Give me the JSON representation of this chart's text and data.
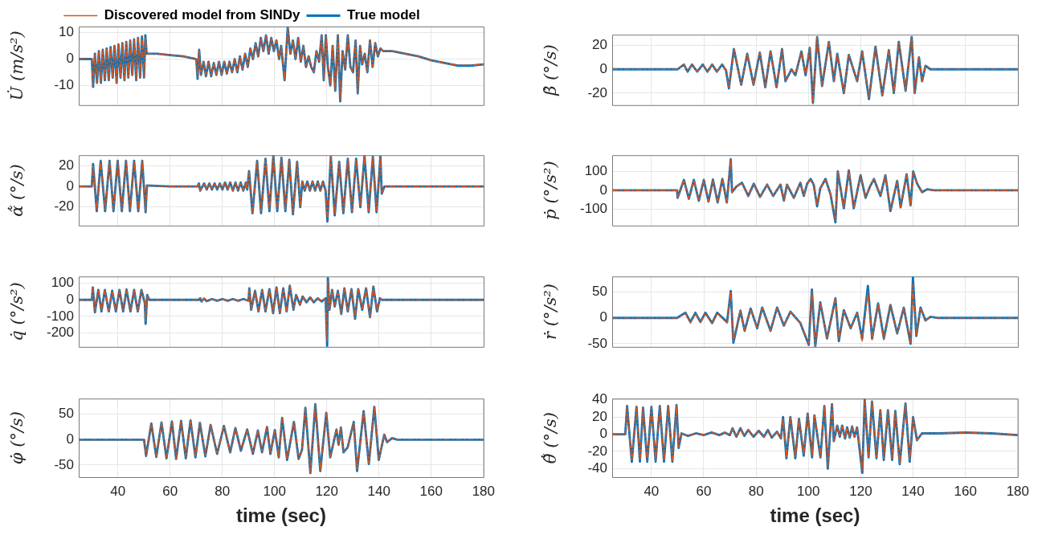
{
  "chart_data": [
    {
      "type": "line",
      "ylabel": "U̇ (m/s²)",
      "legend": "top",
      "grid": true,
      "marker": "none",
      "tick_labels": "y",
      "xlim": [
        25,
        180
      ],
      "xticks": [
        40,
        60,
        80,
        100,
        120,
        140,
        160,
        180
      ],
      "ylim": [
        -17.4,
        12.3
      ],
      "yticks": [
        -10,
        0,
        10
      ],
      "x": [
        25,
        30,
        30.5,
        31.2,
        32,
        32.7,
        33.5,
        34.2,
        35,
        35.7,
        36.5,
        37.2,
        38,
        38.7,
        39.5,
        40.2,
        41,
        41.7,
        42.5,
        43.2,
        44,
        44.7,
        45.5,
        46.2,
        47,
        47.7,
        48.5,
        49.2,
        50,
        50.5,
        51,
        55,
        60,
        65,
        70,
        70.5,
        71.1,
        71.8,
        72.8,
        73.7,
        74.7,
        75.7,
        76.7,
        77.7,
        78.7,
        79.7,
        80.7,
        81.7,
        82.7,
        83.7,
        84.7,
        85.7,
        86.7,
        87.7,
        88.7,
        89.7,
        90.7,
        91.7,
        92.7,
        93.7,
        94.7,
        95.7,
        96.7,
        97.7,
        98.7,
        99.7,
        100.7,
        101.7,
        102.5,
        103.8,
        105,
        106,
        107,
        108,
        109,
        110,
        111,
        112,
        113,
        114,
        115,
        116,
        117,
        118,
        118.8,
        119.6,
        120.4,
        121.3,
        122.2,
        123.2,
        124.2,
        125.1,
        126,
        127,
        128,
        129,
        130,
        131,
        131.8,
        132.7,
        133.5,
        134.5,
        135.5,
        136.5,
        137.5,
        138.5,
        139.5,
        140.5,
        141.5,
        145,
        150,
        155,
        160,
        165,
        170,
        175,
        180
      ],
      "series": [
        {
          "name": "True model",
          "color": "#0072bd",
          "line_style": "solid",
          "values": [
            0,
            0,
            -10.5,
            2,
            -9,
            3,
            -9,
            3.5,
            -8,
            4,
            -8,
            4.5,
            -7,
            5,
            -9,
            5.5,
            -7,
            6,
            -8,
            6.5,
            -7,
            7,
            -6,
            7.5,
            -8,
            8,
            -7,
            8.5,
            -7,
            9,
            2,
            2,
            1.5,
            1,
            0,
            -7.5,
            3.5,
            -6,
            -1,
            -6.5,
            -1,
            -6.5,
            -1.5,
            -6,
            -1,
            -6,
            -1,
            -5.5,
            -1,
            -5,
            0,
            -5,
            1,
            -4,
            2,
            -3,
            4,
            0,
            6,
            1,
            8,
            3,
            9,
            2,
            8,
            3,
            7,
            0,
            5,
            -8,
            12,
            2,
            7,
            0,
            8,
            -1,
            5,
            -3,
            1,
            -3,
            -5,
            3,
            -1,
            9,
            -8,
            9,
            -3,
            -10,
            5,
            -12,
            9,
            -16,
            3,
            -4,
            9,
            -3,
            -5,
            7,
            -13,
            5,
            -2,
            2,
            -5,
            7,
            -3,
            6,
            1,
            4,
            3,
            3,
            2,
            1,
            -0.5,
            -1.5,
            -2.5,
            -2.5,
            -2
          ]
        },
        {
          "name": "Discovered model from SINDy",
          "color": "#d95319",
          "line_style": "dashed",
          "values": [
            0,
            0,
            -10,
            2,
            -9,
            3,
            -9,
            3.5,
            -8,
            4,
            -8,
            4.5,
            -7,
            5,
            -9,
            5.5,
            -7,
            6,
            -8,
            6.5,
            -7,
            7,
            -6,
            7.5,
            -8,
            8,
            -7,
            8.5,
            -7,
            8.5,
            2,
            2,
            1.5,
            1,
            0,
            -7,
            3.5,
            -6,
            -1,
            -6.5,
            -1,
            -6.5,
            -1.5,
            -6,
            -1,
            -6,
            -1,
            -5.5,
            -1,
            -5,
            0,
            -5,
            1,
            -4,
            2,
            -3,
            4,
            0,
            6,
            1,
            8,
            3,
            9,
            2,
            8,
            3,
            7,
            0,
            5,
            -8,
            12,
            2,
            7,
            0,
            8,
            -1,
            5,
            -3,
            1,
            -3,
            -5,
            3,
            -1,
            9,
            -8,
            9,
            -3,
            -10,
            5,
            -12,
            9,
            -15.5,
            3,
            -4,
            9,
            -3,
            -5,
            7,
            -13,
            5,
            -2,
            2,
            -5,
            7,
            -3,
            6,
            1,
            4,
            3,
            3,
            2,
            1,
            -0.5,
            -1.5,
            -2.3,
            -2.4,
            -2
          ]
        }
      ]
    },
    {
      "type": "line",
      "ylabel": "β̇ (°/s)",
      "grid": true,
      "marker": "none",
      "tick_labels": "y",
      "xlim": [
        25,
        180
      ],
      "xticks": [
        40,
        60,
        80,
        100,
        120,
        140,
        160,
        180
      ],
      "ylim": [
        -30,
        29
      ],
      "yticks": [
        -20,
        0,
        20
      ],
      "x": [
        25,
        50,
        52.4,
        53.8,
        55.5,
        57.5,
        59.6,
        61.4,
        63.2,
        65,
        67,
        68.5,
        69.6,
        71.5,
        74.3,
        76.6,
        79,
        81.4,
        83.5,
        85.5,
        87.8,
        89.9,
        91.2,
        93.5,
        95,
        97.3,
        98.9,
        100.5,
        101.7,
        103.3,
        105.2,
        107.8,
        109.7,
        111,
        113.5,
        115.4,
        118.6,
        120.5,
        123.1,
        125.6,
        128.2,
        130.7,
        132.6,
        134.5,
        137.1,
        139.4,
        140.6,
        142.2,
        143.4,
        144.7,
        146.6,
        180
      ],
      "series": [
        {
          "color": "#0072bd",
          "line_style": "solid",
          "values": [
            0,
            0,
            4,
            -2,
            4,
            -2,
            4,
            -2,
            4,
            -2,
            4,
            -1,
            -16,
            17,
            -13,
            13,
            -13,
            14,
            -15,
            15,
            -15,
            17,
            -10,
            0,
            -5,
            15,
            -5,
            18,
            -28,
            27,
            -14,
            23,
            -10,
            13,
            -20,
            12,
            -10,
            15,
            -25,
            19,
            -22,
            16,
            -20,
            23,
            -18,
            27,
            -20,
            10,
            -10,
            3,
            0,
            0
          ]
        },
        {
          "color": "#d95319",
          "line_style": "dashed",
          "values": [
            0,
            0,
            4,
            -2,
            4,
            -2,
            4,
            -2,
            4,
            -2,
            4,
            -1,
            -16,
            17,
            -13,
            13,
            -13,
            14,
            -15,
            15,
            -15,
            17,
            -10,
            0,
            -5,
            15,
            -5,
            18,
            -29,
            27,
            -14,
            23,
            -10,
            13,
            -20,
            12,
            -10,
            15,
            -24,
            19,
            -22,
            16,
            -20,
            23,
            -18,
            27,
            -20,
            10,
            -10,
            3,
            0,
            0
          ]
        }
      ]
    },
    {
      "type": "line",
      "ylabel": "α̃̇ (°/s)",
      "grid": true,
      "marker": "none",
      "tick_labels": "y",
      "xlim": [
        25,
        180
      ],
      "xticks": [
        40,
        60,
        80,
        100,
        120,
        140,
        160,
        180
      ],
      "ylim": [
        -38,
        30.5
      ],
      "yticks": [
        -20,
        0,
        20
      ],
      "x": [
        25,
        30,
        30.5,
        31.9,
        33.4,
        35.1,
        36.8,
        38.3,
        39.9,
        41.5,
        43.1,
        44.6,
        46.2,
        47.8,
        49.3,
        50.6,
        51.1,
        60,
        70.5,
        71,
        71.5,
        73,
        74,
        75,
        76,
        77,
        78,
        79,
        80,
        81,
        82,
        83,
        84,
        85,
        86,
        87,
        88,
        89,
        89.5,
        90.2,
        91.5,
        93.3,
        94.8,
        96.5,
        98,
        99.5,
        101,
        102.6,
        104.1,
        105.6,
        107,
        108.6,
        109.8,
        110.6,
        111.5,
        112.5,
        113.5,
        114.5,
        115.5,
        116.5,
        117.5,
        118.5,
        119.5,
        120.2,
        121.5,
        123,
        124.7,
        126.3,
        128,
        129.6,
        131.2,
        132.8,
        134.4,
        136,
        137.6,
        139,
        140.5,
        141,
        142,
        180
      ],
      "series": [
        {
          "color": "#0072bd",
          "line_style": "solid",
          "values": [
            0,
            0,
            22,
            -24,
            25,
            -24,
            25,
            -24,
            25,
            -24,
            25,
            -24,
            25,
            -24,
            25,
            -25,
            1,
            0,
            0,
            3,
            -4,
            3,
            -3,
            3,
            -3,
            3,
            -3,
            3,
            -3,
            4,
            -3,
            4,
            -4,
            4,
            -4,
            4,
            -4,
            4,
            -3,
            15,
            -26,
            25,
            -26,
            27,
            -24,
            30,
            -24,
            28,
            -24,
            26,
            -27,
            24,
            -20,
            5,
            -4,
            5,
            -4,
            5,
            -4,
            5,
            -4,
            5,
            -4,
            -34,
            29,
            -28,
            24,
            -26,
            27,
            -25,
            27,
            -20,
            30,
            -25,
            29,
            -25,
            29,
            -7,
            0,
            0
          ]
        },
        {
          "color": "#d95319",
          "line_style": "dashed",
          "values": [
            0,
            0,
            21,
            -23,
            25,
            -23,
            25,
            -23,
            25,
            -23,
            25,
            -23,
            25,
            -23,
            25,
            -24,
            1,
            0,
            0,
            3,
            -4,
            3,
            -3,
            3,
            -3,
            3,
            -3,
            3,
            -3,
            4,
            -3,
            4,
            -4,
            4,
            -4,
            4,
            -4,
            4,
            -3,
            14,
            -25,
            25,
            -25,
            27,
            -23,
            30,
            -23,
            28,
            -23,
            26,
            -26,
            24,
            -19,
            5,
            -4,
            5,
            -4,
            5,
            -4,
            5,
            -4,
            5,
            -4,
            -33,
            29,
            -27,
            24,
            -25,
            27,
            -24,
            27,
            -19,
            30,
            -24,
            29,
            -24,
            29,
            -7,
            0,
            0
          ]
        }
      ]
    },
    {
      "type": "line",
      "ylabel": "ṗ (°/s²)",
      "grid": true,
      "marker": "none",
      "tick_labels": "y",
      "xlim": [
        25,
        180
      ],
      "xticks": [
        40,
        60,
        80,
        100,
        120,
        140,
        160,
        180
      ],
      "ylim": [
        -187,
        186
      ],
      "yticks": [
        -100,
        0,
        100
      ],
      "x": [
        25,
        49.8,
        50,
        52.4,
        54.3,
        56.2,
        58.1,
        60,
        61.8,
        63.5,
        65.3,
        67.1,
        68.8,
        70.3,
        70.8,
        72.5,
        74.6,
        77,
        79.1,
        81.5,
        84.2,
        86.5,
        89.3,
        90.6,
        91.8,
        94.4,
        96.9,
        98.2,
        99.5,
        100.8,
        102,
        103.3,
        104.5,
        106.5,
        108.4,
        110.3,
        111.2,
        113.5,
        115.4,
        117.3,
        119.9,
        121.8,
        123.5,
        125,
        127.5,
        129.4,
        131.3,
        133.9,
        135.2,
        137.5,
        139,
        140,
        141.5,
        143.4,
        145.3,
        147.9,
        180
      ],
      "series": [
        {
          "color": "#0072bd",
          "line_style": "solid",
          "values": [
            0,
            0,
            -40,
            55,
            -45,
            55,
            -55,
            55,
            -60,
            57,
            -65,
            60,
            -65,
            165,
            -10,
            20,
            40,
            -30,
            35,
            -35,
            30,
            -30,
            30,
            -55,
            30,
            -40,
            40,
            -30,
            35,
            60,
            30,
            -85,
            10,
            60,
            -20,
            -170,
            100,
            -95,
            105,
            -95,
            80,
            -40,
            20,
            60,
            -30,
            80,
            -110,
            50,
            -90,
            85,
            -80,
            100,
            35,
            -10,
            5,
            0,
            0
          ]
        },
        {
          "color": "#d95319",
          "line_style": "dashed",
          "values": [
            0,
            0,
            -40,
            55,
            -45,
            55,
            -55,
            55,
            -60,
            57,
            -65,
            60,
            -65,
            165,
            -10,
            20,
            40,
            -30,
            35,
            -35,
            30,
            -30,
            30,
            -55,
            30,
            -40,
            40,
            -30,
            35,
            55,
            30,
            -80,
            10,
            60,
            -20,
            -160,
            100,
            -95,
            105,
            -95,
            80,
            -40,
            20,
            60,
            -30,
            80,
            -105,
            50,
            -90,
            85,
            -80,
            100,
            35,
            -10,
            5,
            0,
            0
          ]
        }
      ]
    },
    {
      "type": "line",
      "ylabel": "q̇ (°/s²)",
      "grid": true,
      "marker": "none",
      "tick_labels": "y",
      "xlim": [
        25,
        180
      ],
      "xticks": [
        40,
        60,
        80,
        100,
        120,
        140,
        160,
        180
      ],
      "ylim": [
        -284,
        141
      ],
      "yticks": [
        -200,
        -100,
        0,
        100
      ],
      "x": [
        25,
        30,
        30.4,
        31.2,
        32.5,
        33.7,
        35,
        36.5,
        37.8,
        39.2,
        40.6,
        42,
        43.3,
        44.8,
        46.2,
        47.6,
        49,
        50.3,
        50.6,
        51.2,
        52,
        71,
        71.5,
        72,
        73,
        74,
        76,
        78,
        80,
        82,
        84,
        86,
        88,
        90,
        90.3,
        91,
        92.5,
        93.8,
        95.2,
        96.5,
        98,
        99.4,
        100.7,
        102,
        103.3,
        104.6,
        105.8,
        107.2,
        108.2,
        109.7,
        110.7,
        112.2,
        113.6,
        115,
        116.5,
        118,
        119.5,
        120.1,
        120.4,
        121,
        122,
        123,
        124.2,
        125.5,
        126.7,
        128,
        129.4,
        130.8,
        132,
        133.5,
        135,
        136.5,
        137.8,
        139.2,
        140.3,
        141,
        180
      ],
      "series": [
        {
          "color": "#0072bd",
          "line_style": "solid",
          "values": [
            0,
            0,
            75,
            -75,
            60,
            -70,
            60,
            -70,
            55,
            -70,
            60,
            -70,
            62,
            -70,
            60,
            -70,
            60,
            -20,
            -145,
            30,
            0,
            0,
            10,
            -10,
            8,
            -8,
            5,
            -5,
            5,
            -5,
            5,
            -5,
            5,
            -5,
            70,
            -60,
            55,
            -70,
            60,
            -70,
            65,
            -80,
            75,
            -80,
            70,
            -70,
            85,
            -60,
            30,
            -30,
            20,
            -15,
            15,
            -15,
            10,
            -10,
            10,
            -280,
            130,
            -60,
            60,
            -40,
            55,
            -85,
            70,
            -70,
            65,
            -115,
            65,
            -60,
            70,
            -105,
            80,
            -70,
            10,
            0,
            0
          ]
        },
        {
          "color": "#d95319",
          "line_style": "dashed",
          "values": [
            0,
            0,
            72,
            -70,
            60,
            -68,
            60,
            -68,
            55,
            -68,
            60,
            -68,
            62,
            -68,
            60,
            -68,
            60,
            -20,
            -130,
            30,
            0,
            0,
            10,
            -10,
            8,
            -8,
            5,
            -5,
            5,
            -5,
            5,
            -5,
            5,
            -5,
            68,
            -58,
            55,
            -68,
            60,
            -68,
            65,
            -78,
            75,
            -78,
            70,
            -68,
            85,
            -58,
            30,
            -30,
            20,
            -15,
            15,
            -15,
            10,
            -10,
            10,
            -250,
            120,
            -60,
            60,
            -40,
            55,
            -85,
            70,
            -70,
            65,
            -110,
            65,
            -60,
            70,
            -105,
            80,
            -70,
            10,
            0,
            0
          ]
        }
      ]
    },
    {
      "type": "line",
      "ylabel": "ṙ (°/s²)",
      "grid": true,
      "marker": "none",
      "tick_labels": "y",
      "xlim": [
        25,
        180
      ],
      "xticks": [
        40,
        60,
        80,
        100,
        120,
        140,
        160,
        180
      ],
      "ylim": [
        -56,
        80
      ],
      "yticks": [
        -50,
        0,
        50
      ],
      "x": [
        25,
        49.8,
        53,
        54.9,
        56.8,
        58.7,
        60.6,
        63.2,
        65.1,
        68.9,
        70.3,
        71.3,
        74,
        75.6,
        77.9,
        80.4,
        82.3,
        85.5,
        88,
        90.6,
        93.1,
        96.9,
        100.1,
        101.3,
        102.6,
        104.5,
        107.1,
        110.3,
        111.6,
        113.5,
        116.1,
        118.6,
        120.5,
        122.7,
        124.3,
        126.6,
        128.8,
        131.3,
        133.9,
        136.4,
        139,
        139.9,
        141.2,
        142.8,
        144.7,
        146.6,
        149.2,
        180
      ],
      "series": [
        {
          "color": "#0072bd",
          "line_style": "solid",
          "values": [
            0,
            0,
            10,
            -8,
            10,
            -8,
            10,
            -10,
            10,
            -8,
            52,
            -48,
            14,
            -25,
            18,
            -20,
            20,
            -25,
            20,
            -15,
            12,
            -10,
            -52,
            55,
            -55,
            30,
            -40,
            38,
            -45,
            15,
            -20,
            10,
            -40,
            62,
            -40,
            28,
            -40,
            25,
            -30,
            20,
            -50,
            78,
            -35,
            20,
            -5,
            2,
            0,
            0
          ]
        },
        {
          "color": "#d95319",
          "line_style": "dashed",
          "values": [
            0,
            0,
            9,
            -10,
            9,
            -10,
            9,
            -12,
            9,
            -10,
            50,
            -45,
            14,
            -25,
            17,
            -20,
            19,
            -25,
            19,
            -15,
            12,
            -10,
            -50,
            52,
            -55,
            30,
            -40,
            38,
            -42,
            14,
            -20,
            10,
            -45,
            50,
            -42,
            28,
            -42,
            25,
            -30,
            20,
            -48,
            65,
            -35,
            20,
            -5,
            2,
            0,
            0
          ]
        }
      ]
    },
    {
      "type": "line",
      "ylabel": "φ̇ (°/s)",
      "xlabel": "time (sec)",
      "grid": true,
      "marker": "none",
      "xlim": [
        25,
        180
      ],
      "xticks": [
        40,
        60,
        80,
        100,
        120,
        140,
        160,
        180
      ],
      "ylim": [
        -74,
        81
      ],
      "yticks": [
        -50,
        0,
        50
      ],
      "x": [
        25,
        50,
        50.8,
        52.8,
        54.7,
        56.7,
        58.6,
        60.7,
        62.3,
        64.2,
        66,
        67.8,
        69.7,
        71.4,
        73.5,
        75.5,
        78,
        80.6,
        83,
        85,
        87.1,
        89.5,
        91.7,
        93.6,
        95.2,
        97.1,
        98.4,
        100.1,
        101.6,
        102.9,
        104.8,
        107.4,
        109.2,
        110.5,
        111.8,
        113.7,
        115.6,
        117.5,
        119.8,
        121.3,
        123.7,
        124.5,
        125.4,
        126.4,
        128,
        130.3,
        131.6,
        134.1,
        136.1,
        138.2,
        139.9,
        142,
        143.1,
        145,
        147,
        180
      ],
      "series": [
        {
          "color": "#0072bd",
          "line_style": "solid",
          "values": [
            0,
            0,
            -32,
            32,
            -34,
            34,
            -37,
            36,
            -38,
            37,
            -37,
            38,
            -35,
            33,
            -33,
            29,
            -28,
            27,
            -25,
            23,
            -22,
            20,
            -28,
            18,
            -25,
            25,
            -28,
            19,
            -35,
            43,
            -40,
            35,
            -38,
            -20,
            63,
            -66,
            70,
            -62,
            53,
            -35,
            20,
            -10,
            24,
            -25,
            -15,
            35,
            -62,
            56,
            -48,
            65,
            -40,
            10,
            -5,
            3,
            0,
            0
          ]
        },
        {
          "color": "#d95319",
          "line_style": "dashed",
          "values": [
            0,
            0,
            -31,
            32,
            -33,
            34,
            -36,
            36,
            -37,
            37,
            -36,
            38,
            -34,
            33,
            -32,
            29,
            -27,
            27,
            -24,
            23,
            -21,
            20,
            -27,
            18,
            -24,
            25,
            -27,
            19,
            -34,
            43,
            -39,
            35,
            -37,
            -20,
            63,
            -65,
            70,
            -61,
            53,
            -34,
            20,
            -10,
            24,
            -24,
            -15,
            35,
            -61,
            56,
            -47,
            65,
            -39,
            10,
            -5,
            3,
            0,
            0
          ]
        }
      ]
    },
    {
      "type": "line",
      "ylabel": "θ̃̇ (°/s)",
      "xlabel": "time (sec)",
      "grid": true,
      "marker": "none",
      "xlim": [
        25,
        180
      ],
      "xticks": [
        40,
        60,
        80,
        100,
        120,
        140,
        160,
        180
      ],
      "ylim": [
        -50,
        41.5
      ],
      "yticks": [
        -40,
        -20,
        0,
        20,
        40
      ],
      "x": [
        25,
        30,
        30.7,
        32.5,
        34.3,
        35.6,
        36.8,
        38.4,
        40,
        41.6,
        43.2,
        44.8,
        46.4,
        48,
        49.6,
        50.4,
        51.5,
        54,
        57,
        60,
        63,
        66,
        68,
        70,
        71,
        72.5,
        74,
        75.5,
        77,
        79,
        81,
        83,
        84.5,
        86,
        88,
        89.5,
        90.3,
        91.6,
        93.1,
        95,
        96.4,
        98.2,
        99.7,
        101.4,
        102.3,
        104.6,
        106.1,
        107.4,
        109,
        109.7,
        111,
        112,
        112.9,
        114,
        114.8,
        115.8,
        116.7,
        117.6,
        118.6,
        120.6,
        121.5,
        123,
        124.3,
        126,
        127.5,
        128.8,
        130.4,
        132,
        133.2,
        134.9,
        137.1,
        138.7,
        140,
        141.5,
        143.4,
        150,
        160,
        170,
        180
      ],
      "series": [
        {
          "color": "#0072bd",
          "line_style": "solid",
          "values": [
            0,
            0,
            33,
            -32,
            32,
            -32,
            31,
            -32,
            32,
            -32,
            33,
            -32,
            33,
            -32,
            34,
            -16,
            1,
            -2,
            1,
            -1,
            2,
            -1,
            2,
            -1,
            7,
            -3,
            7,
            -2,
            5,
            -3,
            4,
            -3,
            5,
            -4,
            3,
            -5,
            20,
            -28,
            20,
            -28,
            18,
            -25,
            24,
            -27,
            22,
            -27,
            33,
            -40,
            35,
            -8,
            10,
            -3,
            10,
            -5,
            8,
            -4,
            9,
            -3,
            8,
            -45,
            40,
            -27,
            38,
            -28,
            28,
            -30,
            28,
            -30,
            27,
            -35,
            36,
            -32,
            20,
            -7,
            1,
            1,
            2,
            1,
            -1
          ]
        },
        {
          "color": "#d95319",
          "line_style": "dashed",
          "values": [
            0,
            0,
            32,
            -31,
            32,
            -31,
            31,
            -31,
            32,
            -31,
            33,
            -31,
            33,
            -31,
            34,
            -15,
            1,
            -2,
            1,
            -1,
            2,
            -1,
            2,
            -1,
            7,
            -3,
            7,
            -2,
            5,
            -3,
            4,
            -3,
            5,
            -4,
            3,
            -5,
            19,
            -27,
            20,
            -27,
            18,
            -24,
            24,
            -26,
            22,
            -26,
            33,
            -38,
            35,
            -8,
            10,
            -3,
            10,
            -5,
            8,
            -4,
            9,
            -3,
            8,
            -42,
            39,
            -26,
            38,
            -27,
            28,
            -29,
            28,
            -29,
            27,
            -34,
            36,
            -31,
            20,
            -7,
            1,
            1,
            2,
            1,
            -1
          ]
        }
      ]
    }
  ]
}
